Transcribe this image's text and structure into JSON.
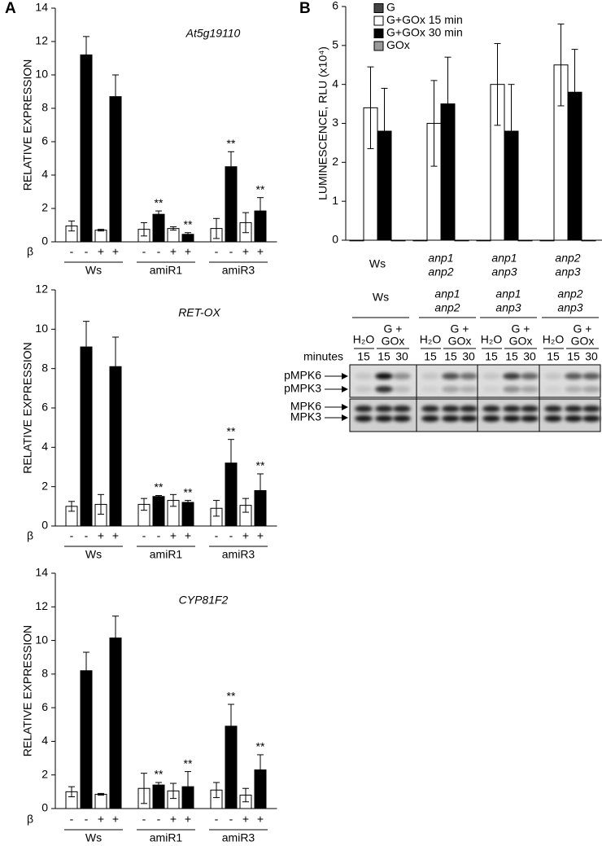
{
  "panel_labels": [
    "A",
    "B"
  ],
  "chart_data": [
    {
      "type": "bar",
      "title": "At5g19110",
      "y_label": "RELATIVE EXPRESSION",
      "ylim": [
        0,
        14
      ],
      "yticks": [
        0,
        2,
        4,
        6,
        8,
        10,
        12,
        14
      ],
      "categories": [
        "Ws",
        "amiR1",
        "amiR3"
      ],
      "treatment_label": "β",
      "series": [
        {
          "treatment": "-",
          "color": "#ffffff",
          "values": [
            0.95,
            0.75,
            0.8
          ],
          "errors": [
            0.3,
            0.4,
            0.6
          ]
        },
        {
          "treatment": "-",
          "color": "#000000",
          "values": [
            11.2,
            1.65,
            4.5
          ],
          "errors": [
            1.1,
            0.2,
            0.9
          ],
          "labels": [
            null,
            "**",
            "**"
          ]
        },
        {
          "treatment": "+",
          "color": "#ffffff",
          "values": [
            0.7,
            0.8,
            1.15
          ],
          "errors": [
            0.05,
            0.1,
            0.6
          ]
        },
        {
          "treatment": "+",
          "color": "#000000",
          "values": [
            8.7,
            0.45,
            1.85
          ],
          "errors": [
            1.3,
            0.1,
            0.8
          ],
          "labels": [
            null,
            "**",
            "**"
          ]
        }
      ]
    },
    {
      "type": "bar",
      "title": "RET-OX",
      "y_label": "RELATIVE EXPRESSION",
      "ylim": [
        0,
        12
      ],
      "yticks": [
        0,
        2,
        4,
        6,
        8,
        10,
        12
      ],
      "categories": [
        "Ws",
        "amiR1",
        "amiR3"
      ],
      "treatment_label": "β",
      "series": [
        {
          "treatment": "-",
          "color": "#ffffff",
          "values": [
            1.0,
            1.1,
            0.9
          ],
          "errors": [
            0.25,
            0.3,
            0.4
          ]
        },
        {
          "treatment": "-",
          "color": "#000000",
          "values": [
            9.1,
            1.5,
            3.2
          ],
          "errors": [
            1.3,
            0.05,
            1.2
          ],
          "labels": [
            null,
            "**",
            "**"
          ]
        },
        {
          "treatment": "+",
          "color": "#ffffff",
          "values": [
            1.1,
            1.3,
            1.05
          ],
          "errors": [
            0.5,
            0.3,
            0.35
          ]
        },
        {
          "treatment": "+",
          "color": "#000000",
          "values": [
            8.1,
            1.2,
            1.8
          ],
          "errors": [
            1.5,
            0.1,
            0.85
          ],
          "labels": [
            null,
            "**",
            "**"
          ]
        }
      ]
    },
    {
      "type": "bar",
      "title": "CYP81F2",
      "y_label": "RELATIVE EXPRESSION",
      "ylim": [
        0,
        14
      ],
      "yticks": [
        0,
        2,
        4,
        6,
        8,
        10,
        12,
        14
      ],
      "categories": [
        "Ws",
        "amiR1",
        "amiR3"
      ],
      "treatment_label": "β",
      "series": [
        {
          "treatment": "-",
          "color": "#ffffff",
          "values": [
            1.0,
            1.2,
            1.1
          ],
          "errors": [
            0.3,
            0.9,
            0.45
          ]
        },
        {
          "treatment": "-",
          "color": "#000000",
          "values": [
            8.2,
            1.4,
            4.9
          ],
          "errors": [
            1.1,
            0.15,
            1.3
          ],
          "labels": [
            null,
            "**",
            "**"
          ]
        },
        {
          "treatment": "+",
          "color": "#ffffff",
          "values": [
            0.85,
            1.05,
            0.8
          ],
          "errors": [
            0.05,
            0.45,
            0.4
          ]
        },
        {
          "treatment": "+",
          "color": "#000000",
          "values": [
            10.15,
            1.3,
            2.3
          ],
          "errors": [
            1.3,
            0.9,
            0.9
          ],
          "labels": [
            null,
            "**",
            "**"
          ]
        }
      ]
    },
    {
      "type": "bar",
      "y_label": "LUMINESCENCE, RLU (x10⁴)",
      "ylim": [
        0,
        6
      ],
      "yticks": [
        0,
        1,
        2,
        3,
        4,
        5,
        6
      ],
      "categories": [
        [
          "Ws"
        ],
        [
          "anp1",
          "anp2"
        ],
        [
          "anp1",
          "anp3"
        ],
        [
          "anp2",
          "anp3"
        ]
      ],
      "legend": "top-left",
      "series": [
        {
          "name": "G",
          "color": "#444444",
          "values": [
            0,
            0,
            0,
            0
          ]
        },
        {
          "name": "G+GOx 15 min",
          "color": "#ffffff",
          "values": [
            3.4,
            3.0,
            4.0,
            4.5
          ],
          "errors": [
            1.05,
            1.1,
            1.05,
            1.05
          ]
        },
        {
          "name": "G+GOx 30 min",
          "color": "#000000",
          "values": [
            2.8,
            3.5,
            2.8,
            3.8
          ],
          "errors": [
            1.1,
            1.2,
            1.2,
            1.1
          ]
        },
        {
          "name": "GOx",
          "color": "#999999",
          "values": [
            0,
            0,
            0,
            0
          ]
        }
      ]
    }
  ],
  "blot": {
    "genotypes": [
      [
        "Ws"
      ],
      [
        "anp1",
        "anp2"
      ],
      [
        "anp1",
        "anp3"
      ],
      [
        "anp2",
        "anp3"
      ]
    ],
    "treatments": [
      "H₂O",
      [
        "G +",
        "GOx"
      ]
    ],
    "minutes_label": "minutes",
    "minutes": [
      15,
      15,
      30
    ],
    "bands": [
      "pMPK6",
      "pMPK3",
      "MPK6",
      "MPK3"
    ]
  }
}
